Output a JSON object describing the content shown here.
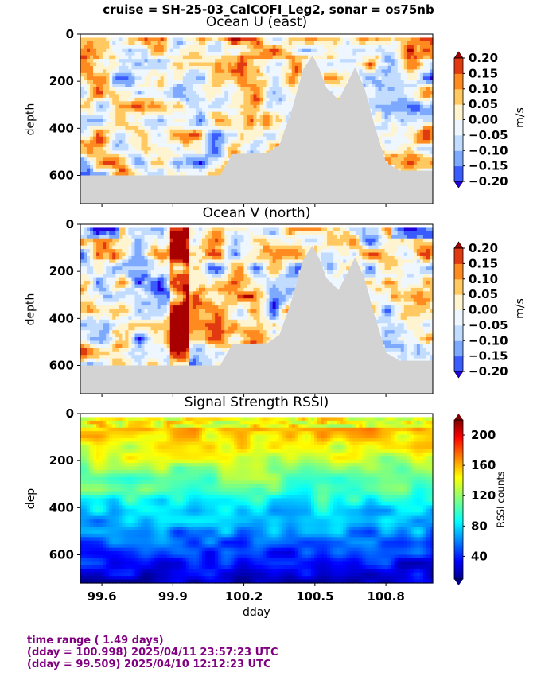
{
  "suptitle": "cruise = SH-25-03_CalCOFI_Leg2,  sonar = os75nb",
  "footer": {
    "line1": "time range ( 1.49 days)",
    "line2": "(dday = 100.998) 2025/04/11 23:57:23 UTC",
    "line3": "(dday = 99.509) 2025/04/10 12:12:23 UTC"
  },
  "colors": {
    "background": "#ffffff",
    "seafloor_mask": "#d3d3d3",
    "footer_text": "#800080"
  },
  "chart_data": [
    {
      "type": "heatmap",
      "title": "Ocean U (east)",
      "xlabel": "",
      "ylabel": "depth",
      "xlim": [
        99.509,
        100.998
      ],
      "ylim": [
        720,
        0
      ],
      "xticks": [
        99.6,
        99.9,
        100.2,
        100.5,
        100.8
      ],
      "xtick_labels": [
        "",
        "",
        "",
        "",
        ""
      ],
      "yticks": [
        0,
        200,
        400,
        600
      ],
      "ytick_labels": [
        "0",
        "200",
        "400",
        "600"
      ],
      "colormap": "bwr-discrete",
      "colorbar": {
        "label": "m/s",
        "ticks": [
          "0.20",
          "0.15",
          "0.10",
          "0.05",
          "0.00",
          "−0.05",
          "−0.10",
          "−0.15",
          "−0.20"
        ],
        "levels": [
          -0.2,
          -0.15,
          -0.1,
          -0.05,
          0,
          0.05,
          0.1,
          0.15,
          0.2
        ],
        "colors": [
          "#2200dd",
          "#3a5cff",
          "#7da9ff",
          "#c2dcff",
          "#eef6ff",
          "#fff4d0",
          "#ffc861",
          "#ff8a1f",
          "#e23a10",
          "#a80000"
        ]
      },
      "bottom_depth": [
        [
          99.509,
          600
        ],
        [
          100.1,
          600
        ],
        [
          100.15,
          510
        ],
        [
          100.3,
          505
        ],
        [
          100.35,
          470
        ],
        [
          100.4,
          330
        ],
        [
          100.45,
          150
        ],
        [
          100.49,
          90
        ],
        [
          100.52,
          150
        ],
        [
          100.55,
          230
        ],
        [
          100.6,
          280
        ],
        [
          100.64,
          200
        ],
        [
          100.67,
          140
        ],
        [
          100.71,
          230
        ],
        [
          100.75,
          380
        ],
        [
          100.8,
          545
        ],
        [
          100.86,
          580
        ],
        [
          100.998,
          580
        ]
      ]
    },
    {
      "type": "heatmap",
      "title": "Ocean V (north)",
      "xlabel": "",
      "ylabel": "depth",
      "xlim": [
        99.509,
        100.998
      ],
      "ylim": [
        720,
        0
      ],
      "xticks": [
        99.6,
        99.9,
        100.2,
        100.5,
        100.8
      ],
      "xtick_labels": [
        "",
        "",
        "",
        "",
        ""
      ],
      "yticks": [
        0,
        200,
        400,
        600
      ],
      "ytick_labels": [
        "0",
        "200",
        "400",
        "600"
      ],
      "colormap": "bwr-discrete",
      "colorbar": {
        "label": "m/s",
        "ticks": [
          "0.20",
          "0.15",
          "0.10",
          "0.05",
          "0.00",
          "−0.05",
          "−0.10",
          "−0.15",
          "−0.20"
        ],
        "levels": [
          -0.2,
          -0.15,
          -0.1,
          -0.05,
          0,
          0.05,
          0.1,
          0.15,
          0.2
        ],
        "colors": [
          "#2200dd",
          "#3a5cff",
          "#7da9ff",
          "#c2dcff",
          "#eef6ff",
          "#fff4d0",
          "#ffc861",
          "#ff8a1f",
          "#e23a10",
          "#a80000"
        ]
      },
      "bottom_depth": [
        [
          99.509,
          600
        ],
        [
          100.1,
          600
        ],
        [
          100.15,
          510
        ],
        [
          100.3,
          505
        ],
        [
          100.35,
          470
        ],
        [
          100.4,
          330
        ],
        [
          100.45,
          150
        ],
        [
          100.49,
          90
        ],
        [
          100.52,
          150
        ],
        [
          100.55,
          230
        ],
        [
          100.6,
          280
        ],
        [
          100.64,
          200
        ],
        [
          100.67,
          140
        ],
        [
          100.71,
          230
        ],
        [
          100.75,
          380
        ],
        [
          100.8,
          545
        ],
        [
          100.86,
          580
        ],
        [
          100.998,
          580
        ]
      ]
    },
    {
      "type": "heatmap",
      "title": "Signal Strength RSSI)",
      "xlabel": "dday",
      "ylabel": "dep",
      "xlim": [
        99.509,
        100.998
      ],
      "ylim": [
        720,
        0
      ],
      "xticks": [
        99.6,
        99.9,
        100.2,
        100.5,
        100.8
      ],
      "xtick_labels": [
        "99.6",
        "99.9",
        "100.2",
        "100.5",
        "100.8"
      ],
      "yticks": [
        0,
        200,
        400,
        600
      ],
      "ytick_labels": [
        "0",
        "200",
        "400",
        "600"
      ],
      "colormap": "jet",
      "colorbar": {
        "label": "RSSI counts",
        "ticks": [
          "200",
          "160",
          "120",
          "80",
          "40"
        ],
        "range": [
          10,
          220
        ]
      }
    }
  ]
}
